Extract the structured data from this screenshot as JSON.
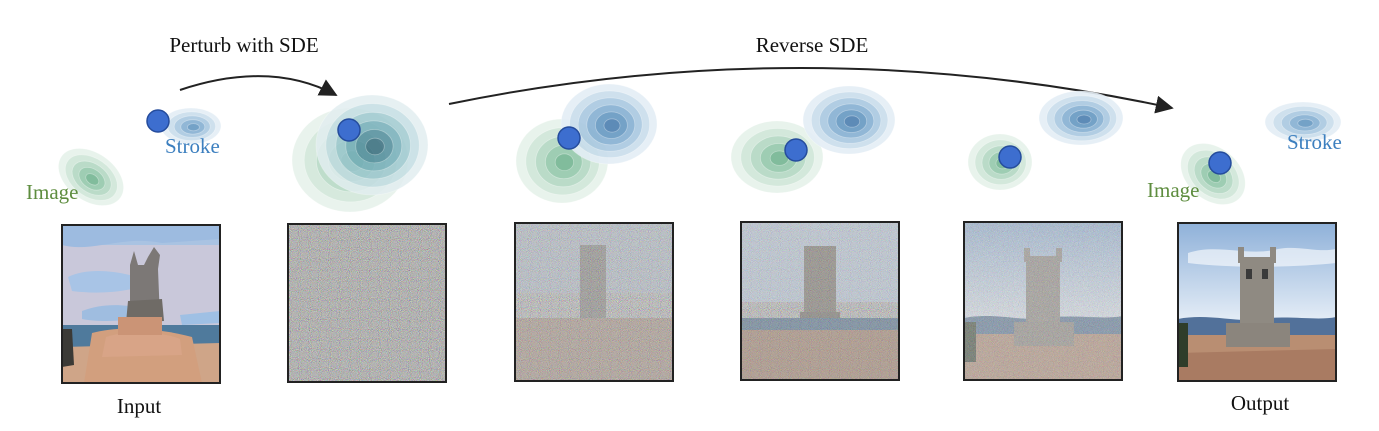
{
  "labels": {
    "perturb": "Perturb with SDE",
    "reverse": "Reverse SDE",
    "image_left": "Image",
    "stroke_left": "Stroke",
    "image_right": "Image",
    "stroke_right": "Stroke",
    "input": "Input",
    "output": "Output"
  },
  "colors": {
    "image_label": "#5e8d3f",
    "stroke_label": "#3c7fbf",
    "image_dist": "#3aa36a",
    "stroke_dist": "#2f78b8",
    "point": "#3d6ecf",
    "arrow": "#222222"
  },
  "panels": [
    {
      "name": "input-painting",
      "noise": 0,
      "kind": "stroke-painting"
    },
    {
      "name": "noisy-1",
      "noise": 1.0,
      "kind": "noise"
    },
    {
      "name": "noisy-2",
      "noise": 0.85,
      "kind": "noise"
    },
    {
      "name": "noisy-3",
      "noise": 0.6,
      "kind": "noise"
    },
    {
      "name": "noisy-4",
      "noise": 0.3,
      "kind": "noise"
    },
    {
      "name": "output-photo",
      "noise": 0,
      "kind": "photo"
    }
  ]
}
